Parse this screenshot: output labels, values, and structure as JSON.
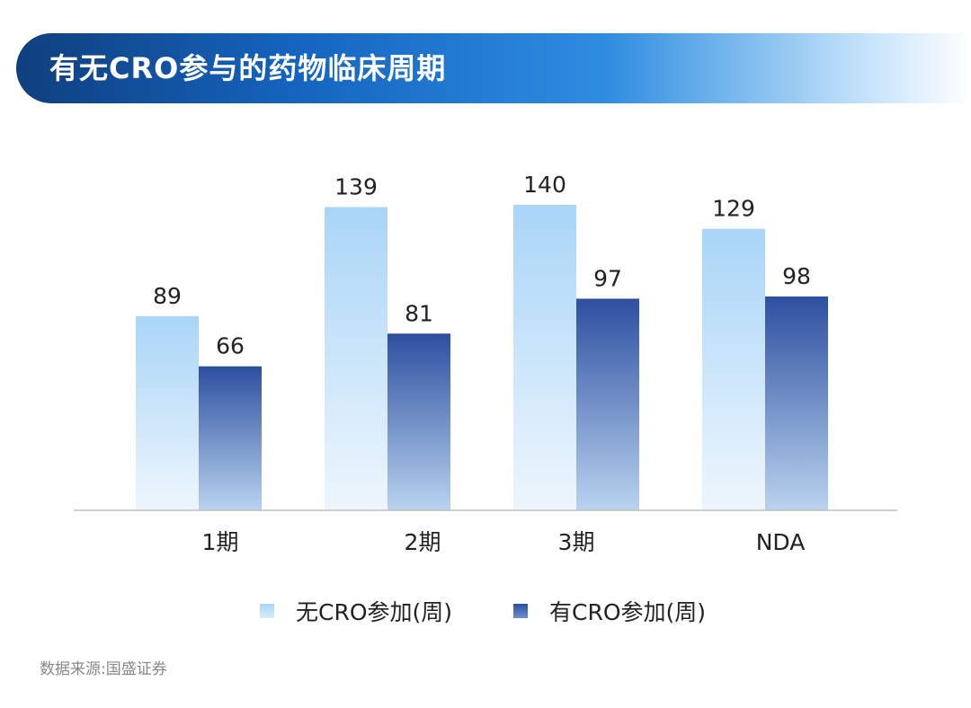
{
  "chart_data": {
    "type": "bar",
    "title": "有无CRO参与的药物临床周期",
    "categories": [
      "1期",
      "2期",
      "3期",
      "NDA"
    ],
    "series": [
      {
        "name": "无CRO参加(周)",
        "values": [
          89,
          139,
          140,
          129
        ],
        "color": "#a9d5f7"
      },
      {
        "name": "有CRO参加(周)",
        "values": [
          66,
          81,
          97,
          98
        ],
        "color": "#2d4fa0"
      }
    ],
    "xlabel": "",
    "ylabel": "",
    "ylim": [
      0,
      140
    ],
    "grid": false,
    "legend_position": "bottom"
  },
  "source": "数据来源:国盛证券"
}
